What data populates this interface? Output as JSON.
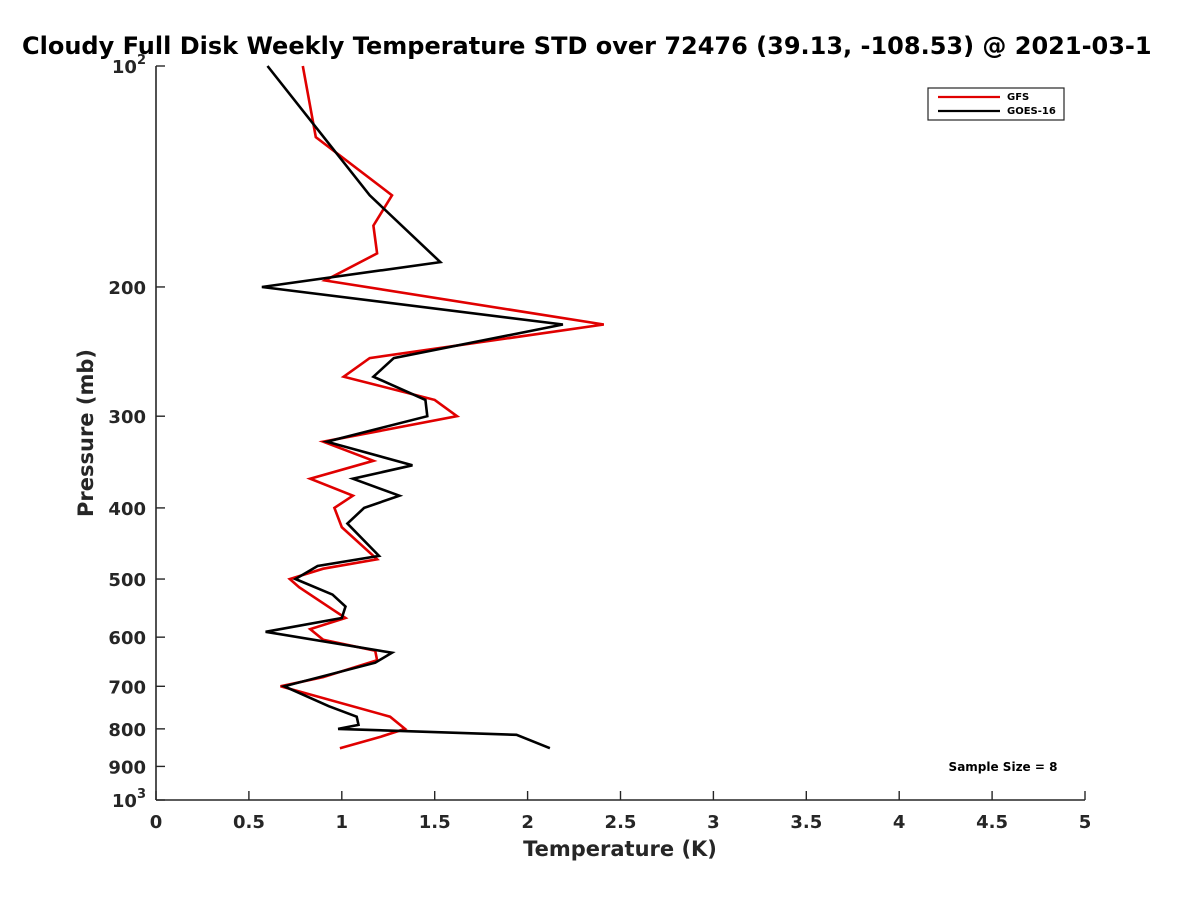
{
  "chart_data": {
    "type": "line",
    "title": "Cloudy Full Disk Weekly Temperature STD over 72476 (39.13, -108.53) @ 2021-03-1",
    "xlabel": "Temperature (K)",
    "ylabel": "Pressure (mb)",
    "xlim": [
      0,
      5
    ],
    "ylim": [
      1000,
      100
    ],
    "yscale": "log",
    "y_reversed": true,
    "x_ticks": [
      {
        "value": 0,
        "label": "0"
      },
      {
        "value": 0.5,
        "label": "0.5"
      },
      {
        "value": 1,
        "label": "1"
      },
      {
        "value": 1.5,
        "label": "1.5"
      },
      {
        "value": 2,
        "label": "2"
      },
      {
        "value": 2.5,
        "label": "2.5"
      },
      {
        "value": 3,
        "label": "3"
      },
      {
        "value": 3.5,
        "label": "3.5"
      },
      {
        "value": 4,
        "label": "4"
      },
      {
        "value": 4.5,
        "label": "4.5"
      },
      {
        "value": 5,
        "label": "5"
      }
    ],
    "y_ticks": [
      {
        "value": 100,
        "base": "10",
        "exp": "2"
      },
      {
        "value": 200,
        "base": "200",
        "exp": ""
      },
      {
        "value": 300,
        "base": "300",
        "exp": ""
      },
      {
        "value": 400,
        "base": "400",
        "exp": ""
      },
      {
        "value": 500,
        "base": "500",
        "exp": ""
      },
      {
        "value": 600,
        "base": "600",
        "exp": ""
      },
      {
        "value": 700,
        "base": "700",
        "exp": ""
      },
      {
        "value": 800,
        "base": "800",
        "exp": ""
      },
      {
        "value": 900,
        "base": "900",
        "exp": ""
      },
      {
        "value": 1000,
        "base": "10",
        "exp": "3"
      }
    ],
    "grid": false,
    "legend_position": "top-right",
    "series": [
      {
        "name": "GFS",
        "color": "#e00000",
        "points": [
          [
            0.79,
            100
          ],
          [
            0.86,
            125
          ],
          [
            1.27,
            150
          ],
          [
            1.17,
            165
          ],
          [
            1.19,
            180
          ],
          [
            0.91,
            196
          ],
          [
            2.41,
            225
          ],
          [
            1.15,
            250
          ],
          [
            1.01,
            265
          ],
          [
            1.5,
            285
          ],
          [
            1.62,
            300
          ],
          [
            0.9,
            325
          ],
          [
            1.17,
            345
          ],
          [
            0.83,
            365
          ],
          [
            1.06,
            385
          ],
          [
            0.96,
            400
          ],
          [
            1.0,
            425
          ],
          [
            1.19,
            470
          ],
          [
            0.9,
            484
          ],
          [
            0.72,
            500
          ],
          [
            0.77,
            513
          ],
          [
            0.95,
            550
          ],
          [
            1.02,
            565
          ],
          [
            0.83,
            585
          ],
          [
            0.9,
            605
          ],
          [
            1.18,
            626
          ],
          [
            1.19,
            645
          ],
          [
            0.9,
            680
          ],
          [
            0.67,
            700
          ],
          [
            1.26,
            770
          ],
          [
            1.34,
            800
          ],
          [
            1.21,
            820
          ],
          [
            0.99,
            850
          ]
        ]
      },
      {
        "name": "GOES-16",
        "color": "#000000",
        "points": [
          [
            0.6,
            100
          ],
          [
            1.15,
            150
          ],
          [
            1.53,
            185
          ],
          [
            0.57,
            200
          ],
          [
            2.19,
            225
          ],
          [
            1.28,
            250
          ],
          [
            1.17,
            265
          ],
          [
            1.45,
            285
          ],
          [
            1.46,
            300
          ],
          [
            0.92,
            325
          ],
          [
            1.38,
            350
          ],
          [
            1.06,
            365
          ],
          [
            1.31,
            385
          ],
          [
            1.12,
            400
          ],
          [
            1.03,
            420
          ],
          [
            1.2,
            465
          ],
          [
            0.87,
            480
          ],
          [
            0.75,
            500
          ],
          [
            0.95,
            525
          ],
          [
            1.02,
            545
          ],
          [
            1.0,
            565
          ],
          [
            0.59,
            590
          ],
          [
            1.27,
            630
          ],
          [
            1.18,
            650
          ],
          [
            0.69,
            700
          ],
          [
            0.93,
            745
          ],
          [
            1.08,
            770
          ],
          [
            1.09,
            790
          ],
          [
            0.98,
            800
          ],
          [
            1.94,
            815
          ],
          [
            2.12,
            850
          ]
        ]
      }
    ],
    "annotations": [
      {
        "text": "Sample Size = 8",
        "position": "bottom-right"
      }
    ]
  }
}
